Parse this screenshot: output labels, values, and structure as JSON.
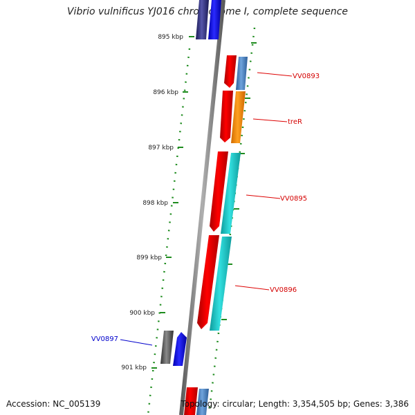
{
  "title": "Vibrio vulnificus YJ016 chromosome I, complete sequence",
  "footer": {
    "accession": "Accession: NC_005139",
    "topology": "Topology: circular; Length: 3,354,505 bp; Genes: 3,386"
  },
  "ticks": [
    "895 kbp",
    "896 kbp",
    "897 kbp",
    "898 kbp",
    "899 kbp",
    "900 kbp",
    "901 kbp"
  ],
  "genes": [
    {
      "name": "VV0893",
      "color": "#d40000"
    },
    {
      "name": "treR",
      "color": "#d40000"
    },
    {
      "name": "VV0895",
      "color": "#d40000"
    },
    {
      "name": "VV0896",
      "color": "#d40000"
    },
    {
      "name": "VV0897",
      "color": "#0000cc"
    }
  ],
  "colors": {
    "backbone": "#808080",
    "tick": "#1e8c1e",
    "gene_red": "#ee0000",
    "gene_blue": "#0000ff",
    "cog_steelblue": "#4f86c6",
    "cog_orange": "#ff9000",
    "cog_cyan": "#19c8c8",
    "cog_gray": "#555555",
    "cog_navy": "#2a2a7a"
  }
}
